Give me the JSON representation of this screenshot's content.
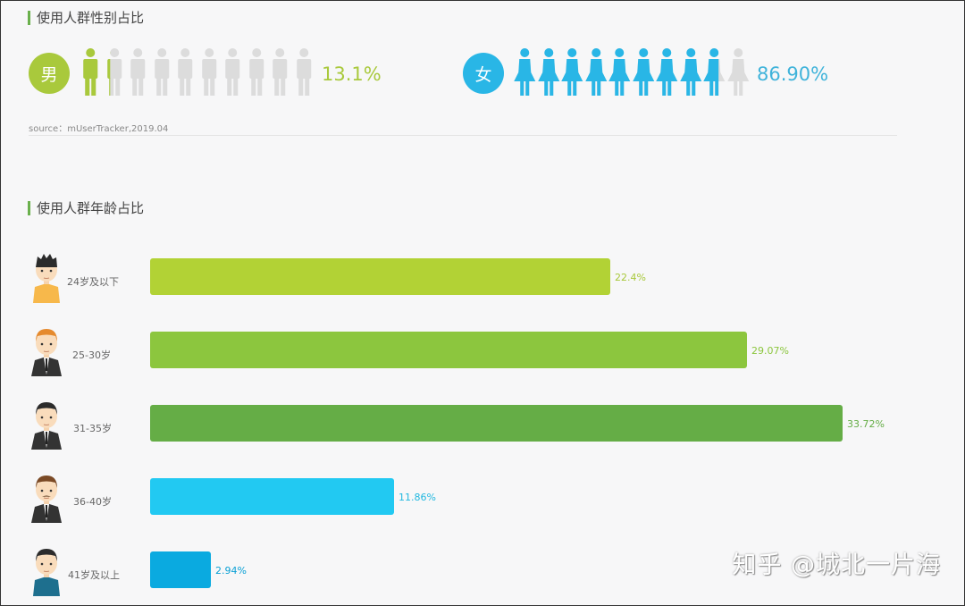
{
  "gender_section": {
    "title": "使用人群性别占比",
    "male": {
      "label": "男",
      "percent": "13.1%",
      "color": "#a9c93c",
      "filled_figures": 1.31
    },
    "female": {
      "label": "女",
      "percent": "86.90%",
      "color": "#29b6e6",
      "filled_figures": 8.69
    },
    "source": "source：mUserTracker,2019.04"
  },
  "age_section": {
    "title": "使用人群年龄占比",
    "rows": [
      {
        "label": "24岁及以下",
        "value": "22.4%",
        "color": "#b2d235",
        "text_color": "#a8c83a"
      },
      {
        "label": "25-30岁",
        "value": "29.07%",
        "color": "#8cc63e",
        "text_color": "#8cc63e"
      },
      {
        "label": "31-35岁",
        "value": "33.72%",
        "color": "#65ad46",
        "text_color": "#65ad46"
      },
      {
        "label": "36-40岁",
        "value": "11.86%",
        "color": "#22c9f2",
        "text_color": "#22b8e0"
      },
      {
        "label": "41岁及以上",
        "value": "2.94%",
        "color": "#0aaae0",
        "text_color": "#0aa0d5"
      }
    ]
  },
  "watermark": "知乎 @城北一片海",
  "chart_data": [
    {
      "type": "bar",
      "title": "使用人群性别占比",
      "categories": [
        "男",
        "女"
      ],
      "values": [
        13.1,
        86.9
      ],
      "source": "mUserTracker,2019.04"
    },
    {
      "type": "bar",
      "orientation": "horizontal",
      "title": "使用人群年龄占比",
      "categories": [
        "24岁及以下",
        "25-30岁",
        "31-35岁",
        "36-40岁",
        "41岁及以上"
      ],
      "values": [
        22.4,
        29.07,
        33.72,
        11.86,
        2.94
      ],
      "xlabel": "",
      "ylabel": ""
    }
  ]
}
